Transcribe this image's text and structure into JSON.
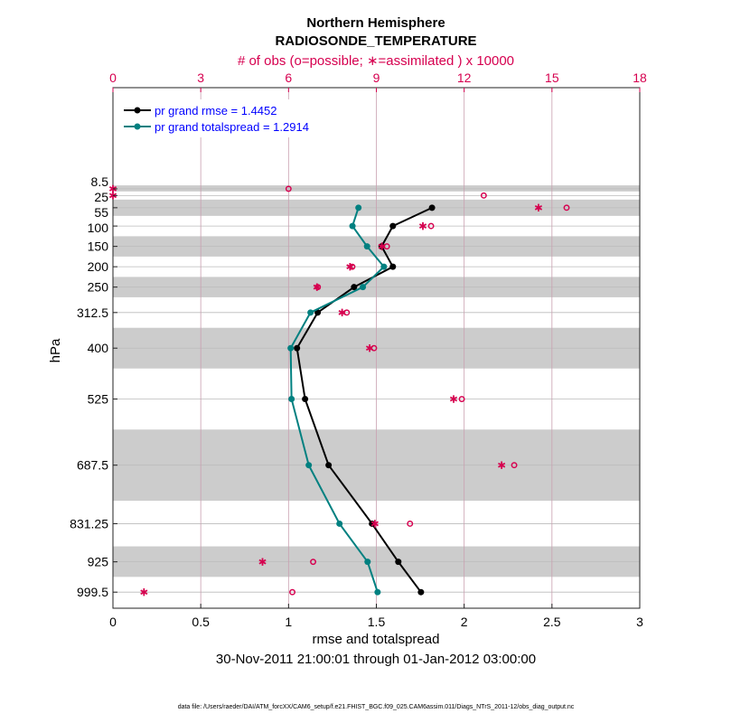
{
  "chart_data": {
    "type": "line",
    "title": "Northern Hemisphere",
    "subtitle": "RADIOSONDE_TEMPERATURE",
    "top_axis_label": "# of obs (o=possible; ∗=assimilated ) x 10000",
    "xlabel": "rmse and totalspread",
    "ylabel": "hPa",
    "date_range": "30-Nov-2011 21:00:01 through 01-Jan-2012 03:00:00",
    "footer": "data file: /Users/raeder/DAI/ATM_forcXX/CAM6_setup/f.e21.FHIST_BGC.f09_025.CAM6assim.011/Diags_NTrS_2011-12/obs_diag_output.nc",
    "xlim": [
      0,
      3
    ],
    "top_xlim": [
      0,
      18
    ],
    "ylim": [
      1039,
      -240
    ],
    "x_ticks": [
      "0",
      "0.5",
      "1",
      "1.5",
      "2",
      "2.5",
      "3"
    ],
    "top_ticks": [
      "0",
      "3",
      "6",
      "9",
      "12",
      "15",
      "18"
    ],
    "levels": [
      8.5,
      25,
      55,
      100,
      150,
      200,
      250,
      312.5,
      400,
      525,
      687.5,
      831.25,
      925,
      999.5
    ],
    "level_labels": [
      "8.5",
      "25",
      "55",
      "100",
      "150",
      "200",
      "250",
      "312.5",
      "400",
      "525",
      "687.5",
      "831.25",
      "925",
      "999.5"
    ],
    "bands_hpa": [
      [
        0,
        15
      ],
      [
        35,
        75
      ],
      [
        125,
        175
      ],
      [
        225,
        275
      ],
      [
        350,
        450
      ],
      [
        600,
        775
      ],
      [
        887,
        962
      ]
    ],
    "series": [
      {
        "name": "pr grand rmse = 1.4452",
        "color": "#000000",
        "levels": [
          55,
          100,
          150,
          200,
          250,
          312.5,
          400,
          525,
          687.5,
          831.25,
          925,
          999.5
        ],
        "values": [
          1.817,
          1.594,
          1.53,
          1.594,
          1.373,
          1.166,
          1.048,
          1.094,
          1.228,
          1.475,
          1.625,
          1.754
        ]
      },
      {
        "name": "pr grand totalspread = 1.2914",
        "color": "#008080",
        "levels": [
          55,
          100,
          150,
          200,
          250,
          312.5,
          400,
          525,
          687.5,
          831.25,
          925,
          999.5
        ],
        "values": [
          1.398,
          1.364,
          1.447,
          1.543,
          1.423,
          1.125,
          1.012,
          1.017,
          1.115,
          1.29,
          1.45,
          1.507
        ]
      }
    ],
    "obs_possible": [
      6.0,
      12.67,
      15.5,
      10.87,
      9.36,
      8.18,
      7.0,
      7.99,
      8.92,
      11.92,
      13.71,
      10.15,
      6.84,
      6.13
    ],
    "obs_assimilated": [
      0,
      0,
      14.54,
      10.59,
      9.19,
      8.1,
      6.97,
      7.83,
      8.77,
      11.64,
      13.28,
      8.95,
      5.11,
      1.06
    ],
    "colors": {
      "obs": "#d6004f",
      "rmse": "#000000",
      "spread": "#008080",
      "band": "#cccccc",
      "legend_text": "#0000ff"
    }
  }
}
